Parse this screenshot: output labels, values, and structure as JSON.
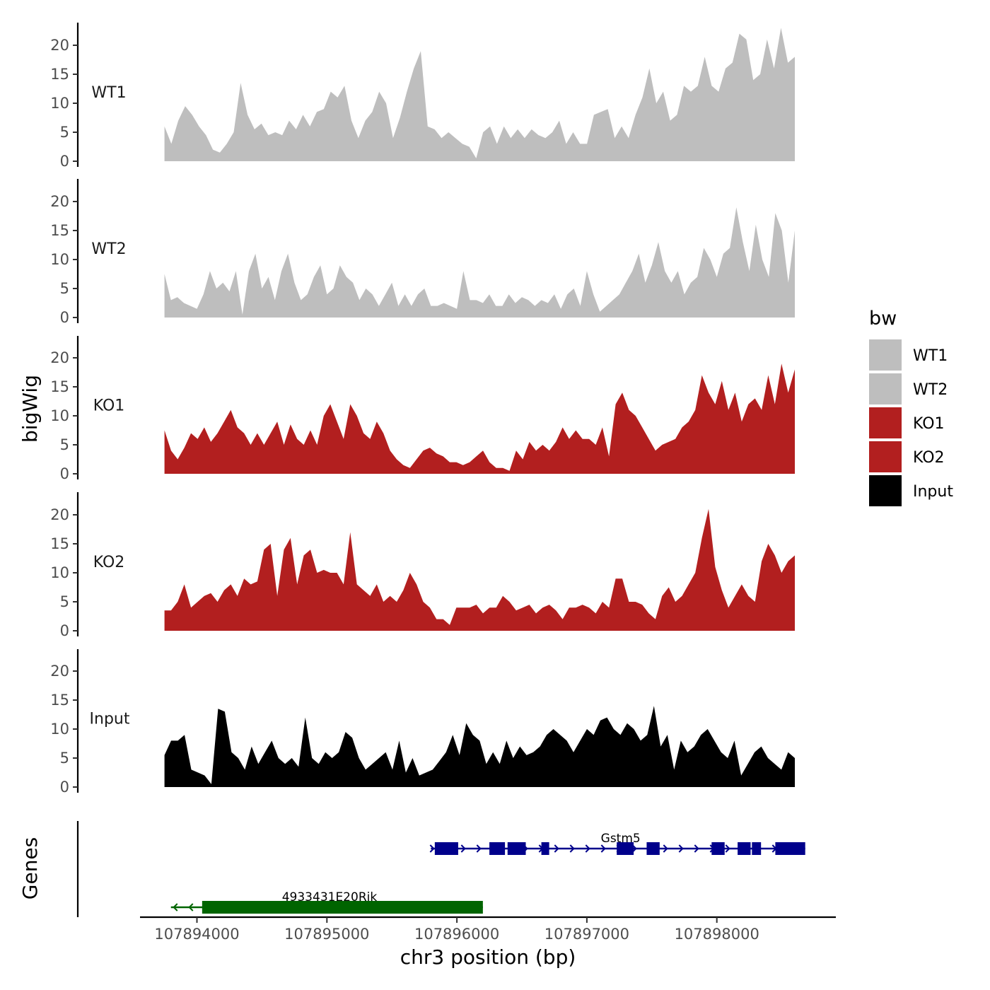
{
  "chart_data": {
    "type": "area",
    "y_axis_title": "bigWig",
    "genes_axis_title": "Genes",
    "x_axis_title": "chr3 position (bp)",
    "x_range": [
      107893500,
      107898900
    ],
    "x_ticks": [
      107894000,
      107895000,
      107896000,
      107897000,
      107898000
    ],
    "x_tick_labels": [
      "107894000",
      "107895000",
      "107896000",
      "107897000",
      "107898000"
    ],
    "y_range": [
      0,
      25
    ],
    "y_ticks": [
      0,
      5,
      10,
      15,
      20
    ],
    "y_tick_labels": [
      "0",
      "5",
      "10",
      "15",
      "20"
    ],
    "data_x_start": 107893750,
    "data_x_end": 107898600,
    "legend": {
      "title": "bw",
      "items": [
        {
          "label": "WT1",
          "color": "#bebebe"
        },
        {
          "label": "WT2",
          "color": "#bebebe"
        },
        {
          "label": "KO1",
          "color": "#b21f1f"
        },
        {
          "label": "KO2",
          "color": "#b21f1f"
        },
        {
          "label": "Input",
          "color": "#000000"
        }
      ]
    },
    "series": [
      {
        "name": "WT1",
        "color": "#bebebe",
        "values": [
          6,
          3,
          7,
          9.5,
          8,
          6,
          4.5,
          2,
          1.5,
          3,
          5,
          13.5,
          8,
          5.5,
          6.5,
          4.5,
          5,
          4.5,
          7,
          5.5,
          8,
          6,
          8.5,
          9,
          12,
          11,
          13,
          7,
          4,
          7,
          8.5,
          12,
          10,
          4,
          7.5,
          12,
          16,
          19,
          6,
          5.5,
          4,
          5,
          4,
          3,
          2.5,
          0.5,
          5,
          6,
          3,
          6,
          4,
          5.5,
          4,
          5.5,
          4.5,
          4,
          5,
          7,
          3,
          5,
          3,
          3,
          8,
          8.5,
          9,
          4,
          6,
          4,
          8,
          11,
          16,
          10,
          12,
          7,
          8,
          13,
          12,
          13,
          18,
          13,
          12,
          16,
          17,
          22,
          21,
          14,
          15,
          21,
          16,
          23,
          17,
          18
        ],
        "peaks": [
          {
            "label_x": 0
          }
        ]
      },
      {
        "name": "WT2",
        "color": "#bebebe",
        "values": [
          7.5,
          3,
          3.5,
          2.5,
          2,
          1.5,
          4,
          8,
          5,
          6,
          4.5,
          8,
          0.5,
          8,
          11,
          5,
          7,
          3,
          8,
          11,
          6,
          3,
          4,
          7,
          9,
          4,
          5,
          9,
          7,
          6,
          3,
          5,
          4,
          2,
          4,
          6,
          2,
          4,
          2,
          4,
          5,
          2,
          2,
          2.5,
          2,
          1.5,
          8,
          3,
          3,
          2.5,
          4,
          2,
          2,
          4,
          2.5,
          3.5,
          3,
          2,
          3,
          2.5,
          4,
          1.5,
          4,
          5,
          2,
          8,
          4,
          1,
          2,
          3,
          4,
          6,
          8,
          11,
          6,
          9,
          13,
          8,
          6,
          8,
          4,
          6,
          7,
          12,
          10,
          7,
          11,
          12,
          19,
          13,
          8,
          16,
          10,
          7,
          18,
          15,
          6,
          15
        ],
        "peaks": []
      },
      {
        "name": "KO1",
        "color": "#b21f1f",
        "values": [
          7.5,
          4,
          2.5,
          4.5,
          7,
          6,
          8,
          5.5,
          7,
          9,
          11,
          8,
          7,
          5,
          7,
          5,
          7,
          9,
          5,
          8.5,
          6,
          5,
          7.5,
          5,
          10,
          12,
          9,
          6,
          12,
          10,
          7,
          6,
          9,
          7,
          4,
          2.5,
          1.5,
          1,
          2.5,
          4,
          4.5,
          3.5,
          3,
          2,
          2,
          1.5,
          2,
          3,
          4,
          2,
          1,
          1,
          0.5,
          4,
          2.5,
          5.5,
          4,
          5,
          4,
          5.5,
          8,
          6,
          7.5,
          6,
          6,
          5,
          8,
          3,
          12,
          14,
          11,
          10,
          8,
          6,
          4,
          5,
          5.5,
          6,
          8,
          9,
          11,
          17,
          14,
          12,
          16,
          11,
          14,
          9,
          12,
          13,
          11,
          17,
          12,
          19,
          14,
          18
        ],
        "peaks": []
      },
      {
        "name": "KO2",
        "color": "#b21f1f",
        "values": [
          3.5,
          3.5,
          5,
          8,
          4,
          5,
          6,
          6.5,
          5,
          7,
          8,
          6,
          9,
          8,
          8.5,
          14,
          15,
          6,
          14,
          16,
          8,
          13,
          14,
          10,
          10.5,
          10,
          10,
          8,
          17,
          8,
          7,
          6,
          8,
          5,
          6,
          5,
          7,
          10,
          8,
          5,
          4,
          2,
          2,
          1,
          4,
          4,
          4,
          4.5,
          3,
          4,
          4,
          6,
          5,
          3.5,
          4,
          4.5,
          3,
          4,
          4.5,
          3.5,
          2,
          4,
          4,
          4.5,
          4,
          3,
          5,
          4,
          9,
          9,
          5,
          5,
          4.5,
          3,
          2,
          6,
          7.5,
          5,
          6,
          8,
          10,
          16,
          21,
          11,
          7,
          4,
          6,
          8,
          6,
          5,
          12,
          15,
          13,
          10,
          12,
          13
        ],
        "peaks": []
      },
      {
        "name": "Input",
        "color": "#000000",
        "values": [
          5.5,
          8,
          8,
          9,
          3,
          2.5,
          2,
          0.5,
          13.5,
          13,
          6,
          5,
          3,
          7,
          4,
          6,
          8,
          5,
          4,
          5,
          3.5,
          12,
          5,
          4,
          6,
          5,
          6,
          9.5,
          8.5,
          5,
          3,
          4,
          5,
          6,
          3,
          8,
          2.5,
          5,
          2,
          2.5,
          3,
          4.5,
          6,
          9,
          5.5,
          11,
          9,
          8,
          4,
          6,
          4,
          8,
          5,
          7,
          5.5,
          6,
          7,
          9,
          10,
          9,
          8,
          6,
          8,
          10,
          9,
          11.5,
          12,
          10,
          9,
          11,
          10,
          8,
          9,
          14,
          7,
          9,
          3,
          8,
          6,
          7,
          9,
          10,
          8,
          6,
          5,
          8,
          2,
          4,
          6,
          7,
          5,
          4,
          3,
          6,
          5
        ],
        "peaks": []
      }
    ],
    "genes": [
      {
        "name": "Gstm5",
        "strand": "+",
        "color": "#00008b",
        "start": 107895800,
        "end": 107898680,
        "exons": [
          [
            107895830,
            107896010
          ],
          [
            107896250,
            107896370
          ],
          [
            107896390,
            107896530
          ],
          [
            107896650,
            107896710
          ],
          [
            107897230,
            107897360
          ],
          [
            107897460,
            107897560
          ],
          [
            107897960,
            107898060
          ],
          [
            107898160,
            107898260
          ],
          [
            107898270,
            107898340
          ],
          [
            107898450,
            107898680
          ]
        ],
        "label_x": 107897260
      },
      {
        "name": "4933431E20Rik",
        "strand": "-",
        "color": "#006400",
        "start": 107893800,
        "end": 107896200,
        "exons": [
          [
            107894040,
            107896200
          ]
        ],
        "label_x": 107895020
      }
    ]
  }
}
